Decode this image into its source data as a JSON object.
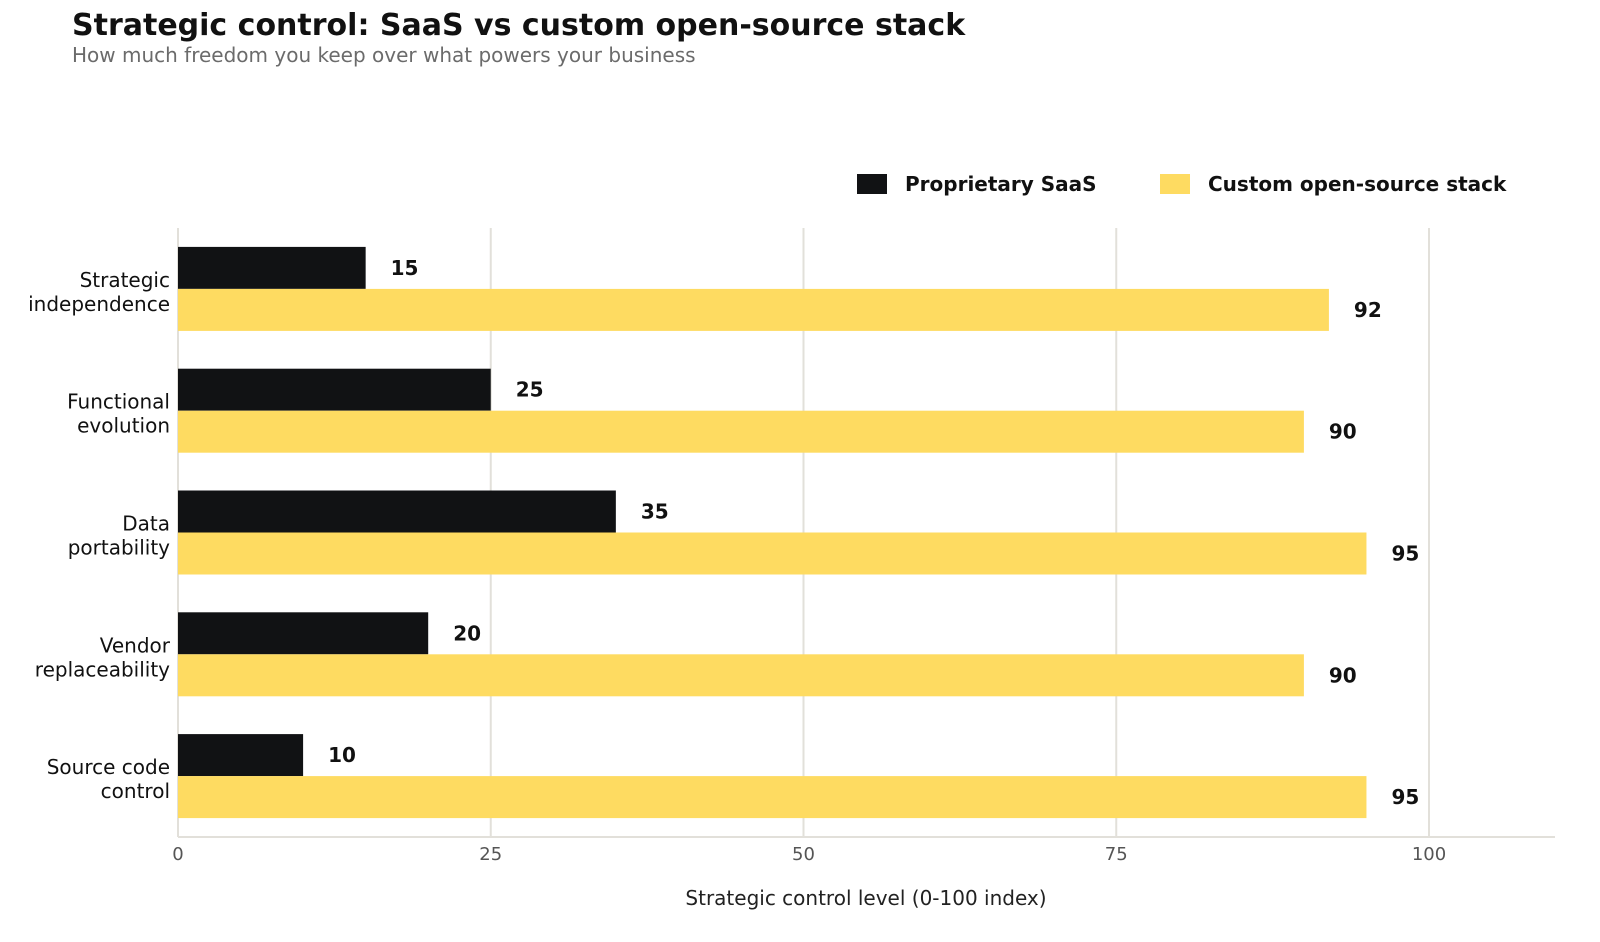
{
  "title": "Strategic control: SaaS vs custom open-source stack",
  "subtitle": "How much freedom you keep over what powers your business",
  "colors": {
    "saas": "#111214",
    "custom": "#fedb61",
    "grid": "#e2e0da",
    "axis": "#e2e0da",
    "tick_text": "#555555"
  },
  "chart_data": {
    "type": "bar",
    "orientation": "horizontal",
    "categories": [
      [
        "Strategic",
        "independence"
      ],
      [
        "Functional",
        "evolution"
      ],
      [
        "Data",
        "portability"
      ],
      [
        "Vendor",
        "replaceability"
      ],
      [
        "Source code",
        "control"
      ]
    ],
    "series": [
      {
        "name": "Proprietary SaaS",
        "values": [
          15,
          25,
          35,
          20,
          10
        ]
      },
      {
        "name": "Custom open-source stack",
        "values": [
          92,
          90,
          95,
          90,
          95
        ]
      }
    ],
    "xlabel": "Strategic control level (0-100 index)",
    "xlim": [
      0,
      110
    ],
    "xticks": [
      0,
      25,
      50,
      75,
      100
    ],
    "grid": "vertical",
    "legend": "top-right"
  }
}
